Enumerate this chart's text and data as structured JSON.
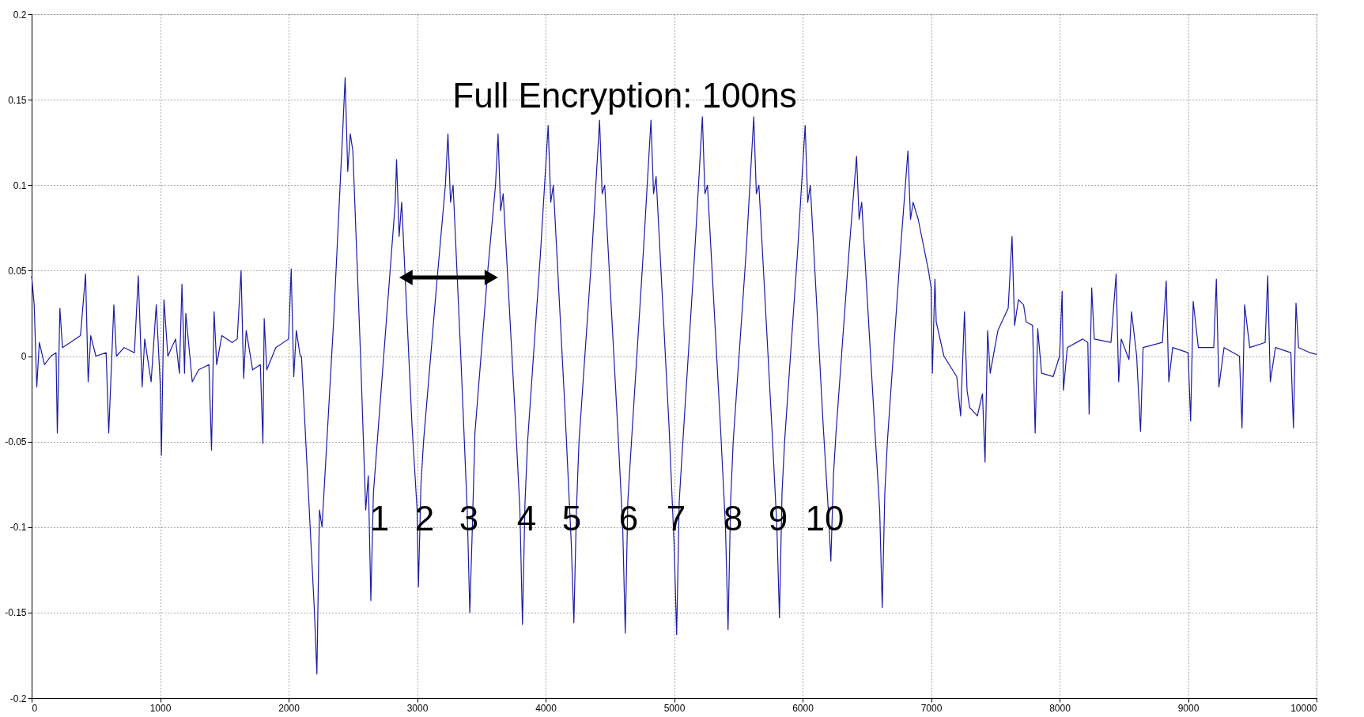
{
  "chart_data": {
    "type": "line",
    "x": [
      0,
      20,
      40,
      60,
      100,
      150,
      190,
      200,
      220,
      240,
      300,
      380,
      420,
      440,
      460,
      500,
      580,
      600,
      640,
      660,
      720,
      800,
      830,
      860,
      880,
      930,
      970,
      1000,
      1010,
      1030,
      1060,
      1120,
      1150,
      1170,
      1190,
      1200,
      1250,
      1300,
      1380,
      1400,
      1420,
      1440,
      1480,
      1560,
      1600,
      1630,
      1650,
      1670,
      1720,
      1780,
      1800,
      1810,
      1830,
      1900,
      2000,
      2020,
      2040,
      2060,
      2090,
      2100,
      2200,
      2220,
      2240,
      2260,
      2350,
      2420,
      2440,
      2460,
      2480,
      2500,
      2560,
      2600,
      2620,
      2640,
      2660,
      2700,
      2800,
      2830,
      2840,
      2860,
      2880,
      2960,
      3000,
      3010,
      3030,
      3050,
      3150,
      3220,
      3240,
      3260,
      3280,
      3340,
      3390,
      3410,
      3430,
      3450,
      3550,
      3610,
      3630,
      3650,
      3670,
      3760,
      3800,
      3820,
      3840,
      3860,
      3960,
      4020,
      4040,
      4060,
      4150,
      4200,
      4220,
      4240,
      4260,
      4360,
      4420,
      4440,
      4460,
      4560,
      4600,
      4620,
      4640,
      4660,
      4760,
      4820,
      4840,
      4860,
      4960,
      5000,
      5020,
      5040,
      5060,
      5160,
      5220,
      5240,
      5260,
      5360,
      5400,
      5420,
      5440,
      5460,
      5560,
      5620,
      5640,
      5660,
      5760,
      5800,
      5820,
      5840,
      5860,
      5960,
      6020,
      6040,
      6060,
      6160,
      6200,
      6220,
      6240,
      6260,
      6360,
      6420,
      6440,
      6460,
      6560,
      6600,
      6620,
      6640,
      6660,
      6760,
      6820,
      6840,
      6860,
      6900,
      6980,
      7000,
      7010,
      7030,
      7040,
      7100,
      7200,
      7230,
      7260,
      7280,
      7300,
      7360,
      7400,
      7420,
      7440,
      7460,
      7520,
      7600,
      7630,
      7650,
      7680,
      7720,
      7740,
      7790,
      7810,
      7830,
      7860,
      7950,
      8000,
      8020,
      8030,
      8060,
      8180,
      8220,
      8230,
      8250,
      8270,
      8400,
      8440,
      8460,
      8480,
      8540,
      8560,
      8600,
      8630,
      8650,
      8800,
      8830,
      8850,
      8880,
      9000,
      9020,
      9040,
      9080,
      9200,
      9220,
      9240,
      9280,
      9400,
      9420,
      9440,
      9480,
      9600,
      9620,
      9640,
      9680,
      9800,
      9820,
      9840,
      9860,
      9950,
      10000
    ],
    "series": [
      {
        "color": "#1a1aa6",
        "values": [
          0.047,
          0.03,
          -0.018,
          0.008,
          -0.005,
          0,
          0.002,
          -0.045,
          0.028,
          0.005,
          0.008,
          0.012,
          0.048,
          -0.015,
          0.012,
          0,
          0.002,
          -0.045,
          0.03,
          0,
          0.005,
          0.002,
          0.047,
          -0.018,
          0.01,
          -0.015,
          0.03,
          -0.015,
          -0.058,
          0.033,
          0,
          0.01,
          -0.01,
          0.042,
          -0.01,
          0.025,
          -0.015,
          -0.008,
          -0.005,
          -0.055,
          0.026,
          -0.005,
          0.012,
          0.008,
          0.01,
          0.05,
          -0.013,
          0.015,
          -0.008,
          -0.005,
          -0.051,
          0.022,
          -0.008,
          0.005,
          0.01,
          0.051,
          -0.012,
          0.015,
          0,
          0,
          -0.148,
          -0.186,
          -0.09,
          -0.1,
          0.02,
          0.13,
          0.163,
          0.108,
          0.13,
          0.12,
          0.0,
          -0.09,
          -0.07,
          -0.143,
          -0.08,
          -0.04,
          0.06,
          0.09,
          0.115,
          0.07,
          0.09,
          -0.04,
          -0.09,
          -0.135,
          -0.075,
          -0.05,
          0.04,
          0.1,
          0.13,
          0.09,
          0.1,
          0.0,
          -0.09,
          -0.15,
          -0.1,
          -0.045,
          0.05,
          0.1,
          0.13,
          0.085,
          0.095,
          -0.03,
          -0.09,
          -0.157,
          -0.085,
          -0.05,
          0.06,
          0.135,
          0.09,
          0.1,
          -0.03,
          -0.11,
          -0.156,
          -0.09,
          -0.05,
          0.06,
          0.138,
          0.095,
          0.1,
          -0.04,
          -0.1,
          -0.162,
          -0.085,
          -0.06,
          0.06,
          0.138,
          0.095,
          0.105,
          -0.04,
          -0.11,
          -0.163,
          -0.085,
          -0.06,
          0.06,
          0.14,
          0.095,
          0.1,
          -0.04,
          -0.1,
          -0.16,
          -0.085,
          -0.05,
          0.06,
          0.14,
          0.095,
          0.1,
          -0.04,
          -0.1,
          -0.153,
          -0.08,
          -0.05,
          0.06,
          0.135,
          0.09,
          0.1,
          -0.04,
          -0.09,
          -0.12,
          -0.07,
          -0.045,
          0.06,
          0.117,
          0.08,
          0.09,
          -0.04,
          -0.09,
          -0.147,
          -0.08,
          -0.05,
          0.06,
          0.12,
          0.08,
          0.09,
          0.08,
          0.05,
          0.04,
          -0.01,
          0.045,
          0.02,
          0.0,
          -0.012,
          -0.035,
          0.026,
          -0.02,
          -0.03,
          -0.035,
          -0.022,
          -0.062,
          0.015,
          -0.01,
          0.015,
          0.028,
          0.07,
          0.018,
          0.033,
          0.03,
          0.02,
          0.018,
          -0.045,
          0.016,
          -0.01,
          -0.012,
          0.0,
          0.038,
          -0.02,
          0.005,
          0.01,
          0.008,
          -0.034,
          0.04,
          0.01,
          0.008,
          0.048,
          -0.015,
          0.01,
          -0.002,
          0.026,
          0.0,
          -0.044,
          0.005,
          0.008,
          0.044,
          -0.015,
          0.005,
          0.002,
          -0.038,
          0.032,
          0.005,
          0.005,
          0.045,
          -0.018,
          0.005,
          0.0,
          -0.042,
          0.03,
          0.005,
          0.008,
          0.047,
          -0.015,
          0.005,
          0.002,
          -0.042,
          0.031,
          0.005,
          0.002,
          0.001
        ]
      }
    ],
    "xlim": [
      0,
      10000
    ],
    "xticks": [
      0,
      1000,
      2000,
      3000,
      4000,
      5000,
      6000,
      7000,
      8000,
      9000,
      10000
    ],
    "ylim": [
      -0.2,
      0.2
    ],
    "yticks": [
      -0.2,
      -0.15,
      -0.1,
      -0.05,
      0,
      0.05,
      0.1,
      0.15,
      0.2
    ],
    "grid": true,
    "line_style": "solid",
    "marker": "none",
    "annotations": [
      "Full Encryption: 100ns",
      "1",
      "2",
      "3",
      "4",
      "5",
      "6",
      "7",
      "8",
      "9",
      "10"
    ]
  }
}
